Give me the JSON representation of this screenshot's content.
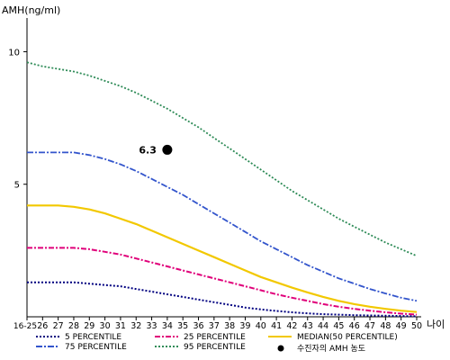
{
  "chart_data": {
    "type": "line",
    "ylabel": "AMH(ng/ml)",
    "xlabel": "나이",
    "ylim": [
      0,
      11
    ],
    "yticks": [
      5,
      10
    ],
    "x_categories": [
      "16-25",
      "26",
      "27",
      "28",
      "29",
      "30",
      "31",
      "32",
      "33",
      "34",
      "35",
      "36",
      "37",
      "38",
      "39",
      "40",
      "41",
      "42",
      "43",
      "44",
      "45",
      "46",
      "47",
      "48",
      "49",
      "50"
    ],
    "series": [
      {
        "name": "5 PERCENTILE",
        "color": "#000080",
        "dash": "2,2",
        "width": 2,
        "values": [
          1.3,
          1.3,
          1.3,
          1.3,
          1.25,
          1.2,
          1.15,
          1.05,
          0.95,
          0.85,
          0.75,
          0.65,
          0.55,
          0.45,
          0.35,
          0.28,
          0.22,
          0.17,
          0.13,
          0.1,
          0.08,
          0.06,
          0.05,
          0.04,
          0.03,
          0.02
        ]
      },
      {
        "name": "25 PERCENTILE",
        "color": "#e0007a",
        "dash": "6,2,2,2",
        "width": 2,
        "values": [
          2.6,
          2.6,
          2.6,
          2.6,
          2.55,
          2.45,
          2.35,
          2.2,
          2.05,
          1.9,
          1.75,
          1.6,
          1.45,
          1.3,
          1.15,
          1.0,
          0.85,
          0.72,
          0.6,
          0.48,
          0.38,
          0.3,
          0.23,
          0.17,
          0.12,
          0.08
        ]
      },
      {
        "name": "MEDIAN(50 PERCENTILE)",
        "color": "#f2c800",
        "dash": "",
        "width": 2.2,
        "values": [
          4.2,
          4.2,
          4.2,
          4.15,
          4.05,
          3.9,
          3.7,
          3.5,
          3.25,
          3.0,
          2.75,
          2.5,
          2.25,
          2.0,
          1.75,
          1.5,
          1.3,
          1.1,
          0.92,
          0.75,
          0.6,
          0.48,
          0.38,
          0.3,
          0.23,
          0.18
        ]
      },
      {
        "name": "75 PERCENTILE",
        "color": "#3355cc",
        "dash": "7,2,2,2",
        "width": 1.8,
        "values": [
          6.2,
          6.2,
          6.2,
          6.2,
          6.1,
          5.95,
          5.75,
          5.5,
          5.2,
          4.9,
          4.6,
          4.25,
          3.9,
          3.55,
          3.2,
          2.85,
          2.55,
          2.25,
          1.95,
          1.7,
          1.45,
          1.25,
          1.05,
          0.88,
          0.72,
          0.6
        ]
      },
      {
        "name": "95 PERCENTILE",
        "color": "#2e8b57",
        "dash": "2,2",
        "width": 1.8,
        "values": [
          9.6,
          9.45,
          9.35,
          9.25,
          9.1,
          8.9,
          8.7,
          8.45,
          8.15,
          7.85,
          7.5,
          7.15,
          6.75,
          6.35,
          5.95,
          5.55,
          5.15,
          4.75,
          4.4,
          4.05,
          3.7,
          3.4,
          3.1,
          2.8,
          2.55,
          2.3
        ]
      }
    ],
    "marker": {
      "name": "수진자의 AMH 농도",
      "x": "34",
      "y": 6.3,
      "label": "6.3",
      "color": "#000000"
    }
  }
}
